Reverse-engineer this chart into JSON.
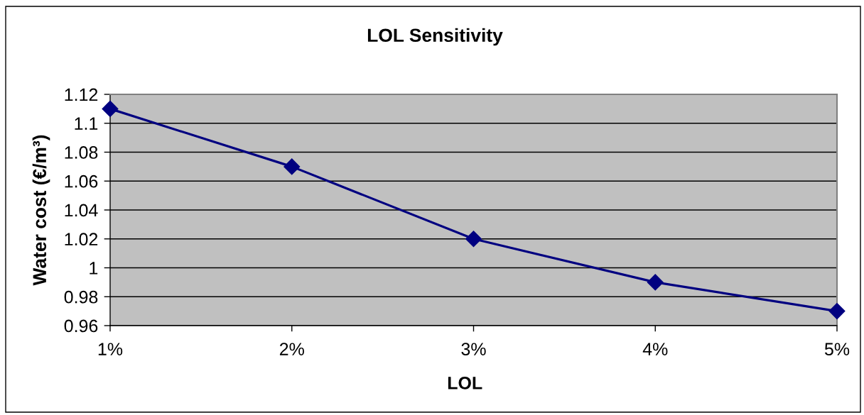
{
  "chart_data": {
    "type": "line",
    "title": "LOL Sensitivity",
    "xlabel": "LOL",
    "ylabel": "Water cost (€/m³)",
    "categories": [
      "1%",
      "2%",
      "3%",
      "4%",
      "5%"
    ],
    "series": [
      {
        "color": "#000080",
        "values": [
          1.11,
          1.07,
          1.02,
          0.99,
          0.97
        ]
      }
    ],
    "ylim": [
      0.96,
      1.12
    ],
    "yticks": [
      0.96,
      0.98,
      1,
      1.02,
      1.04,
      1.06,
      1.08,
      1.1,
      1.12
    ],
    "grid": "y",
    "marker": "diamond",
    "line_style": "solid"
  }
}
